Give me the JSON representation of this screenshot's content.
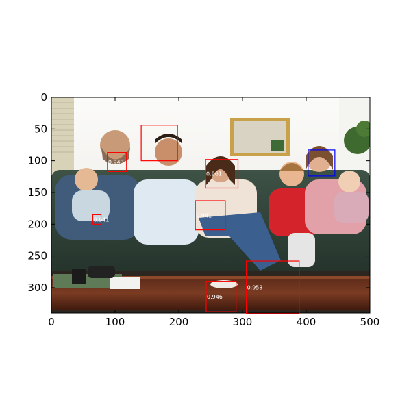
{
  "image": {
    "width": 500,
    "height": 340,
    "scene": "family-on-sofa-photo"
  },
  "axes": {
    "x_ticks": [
      0,
      100,
      200,
      300,
      400,
      500
    ],
    "y_ticks": [
      0,
      50,
      100,
      150,
      200,
      250,
      300
    ]
  },
  "detections": [
    {
      "x": 88,
      "y": 87,
      "w": 30,
      "h": 30,
      "score": "0.943",
      "color": "#ff0000"
    },
    {
      "x": 141,
      "y": 44,
      "w": 57,
      "h": 56,
      "score": "",
      "color": "#ff0000"
    },
    {
      "x": 242,
      "y": 98,
      "w": 51,
      "h": 45,
      "score": "0.961",
      "color": "#ff0000"
    },
    {
      "x": 403,
      "y": 83,
      "w": 42,
      "h": 41,
      "score": "",
      "color": "#0000ff"
    },
    {
      "x": 226,
      "y": 163,
      "w": 47,
      "h": 46,
      "score": "0.941",
      "color": "#ff0000"
    },
    {
      "x": 65,
      "y": 185,
      "w": 13,
      "h": 15,
      "score": "0.941",
      "color": "#ff0000"
    },
    {
      "x": 306,
      "y": 258,
      "w": 83,
      "h": 83,
      "score": "0.953",
      "color": "#ff0000"
    },
    {
      "x": 243,
      "y": 290,
      "w": 47,
      "h": 48,
      "score": "0.946",
      "color": "#ff0000"
    }
  ]
}
